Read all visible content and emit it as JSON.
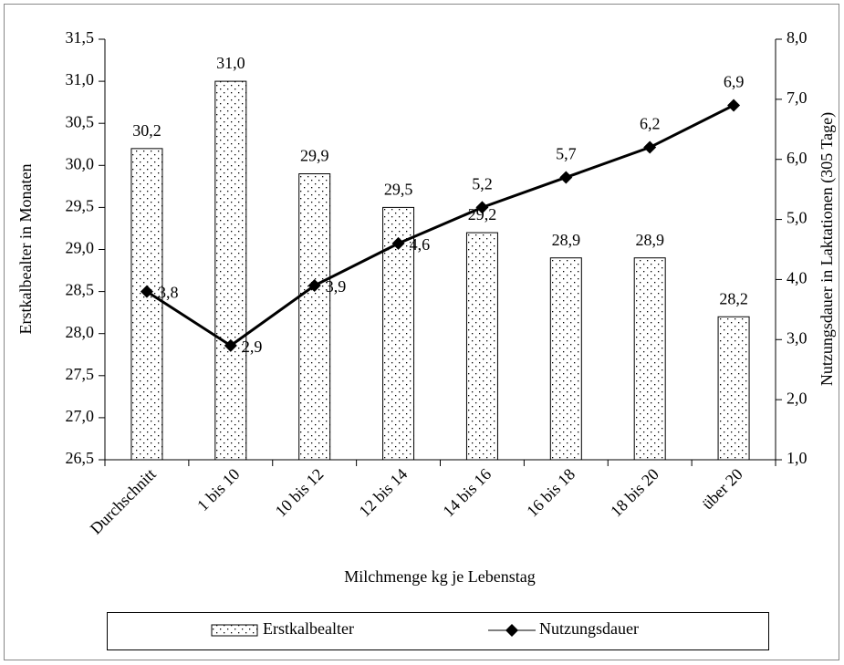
{
  "chart_data": {
    "type": "bar",
    "x_label": "Milchmenge kg je Lebenstag",
    "y_label": "Erstkalbealter in Monaten",
    "y2_label": "Nutzungsdauer in Laktationen (305 Tage)",
    "categories": [
      "Durchschnitt",
      "1 bis 10",
      "10 bis 12",
      "12 bis 14",
      "14 bis 16",
      "16 bis 18",
      "18 bis 20",
      "über 20"
    ],
    "series": [
      {
        "name": "Erstkalbealter",
        "type": "bar",
        "color": "#000000",
        "values": [
          30.2,
          31.0,
          29.9,
          29.5,
          29.2,
          28.9,
          28.9,
          28.2
        ],
        "value_labels": [
          "30,2",
          "31,0",
          "29,9",
          "29,5",
          "29,2",
          "28,9",
          "28,9",
          "28,2"
        ]
      },
      {
        "name": "Nutzungsdauer",
        "type": "line",
        "axis": "y2",
        "color": "#000000",
        "values": [
          3.8,
          2.9,
          3.9,
          4.6,
          5.2,
          5.7,
          6.2,
          6.9
        ],
        "value_labels": [
          "3,8",
          "2,9",
          "3,9",
          "4,6",
          "5,2",
          "5,7",
          "6,2",
          "6,9"
        ]
      }
    ],
    "ylim": [
      26.5,
      31.5
    ],
    "yticks": [
      {
        "value": 26.5,
        "label": "26,5"
      },
      {
        "value": 27,
        "label": "27,0"
      },
      {
        "value": 27.5,
        "label": "27,5"
      },
      {
        "value": 28,
        "label": "28,0"
      },
      {
        "value": 28.5,
        "label": "28,5"
      },
      {
        "value": 29,
        "label": "29,0"
      },
      {
        "value": 29.5,
        "label": "29,5"
      },
      {
        "value": 30,
        "label": "30,0"
      },
      {
        "value": 30.5,
        "label": "30,5"
      },
      {
        "value": 31,
        "label": "31,0"
      },
      {
        "value": 31.5,
        "label": "31,5"
      }
    ],
    "y2lim": [
      1,
      8
    ],
    "y2ticks": [
      {
        "value": 1,
        "label": "1,0"
      },
      {
        "value": 2,
        "label": "2,0"
      },
      {
        "value": 3,
        "label": "3,0"
      },
      {
        "value": 4,
        "label": "4,0"
      },
      {
        "value": 5,
        "label": "5,0"
      },
      {
        "value": 6,
        "label": "6,0"
      },
      {
        "value": 7,
        "label": "7,0"
      },
      {
        "value": 8,
        "label": "8,0"
      }
    ],
    "grid": false,
    "legend": "bottom"
  }
}
